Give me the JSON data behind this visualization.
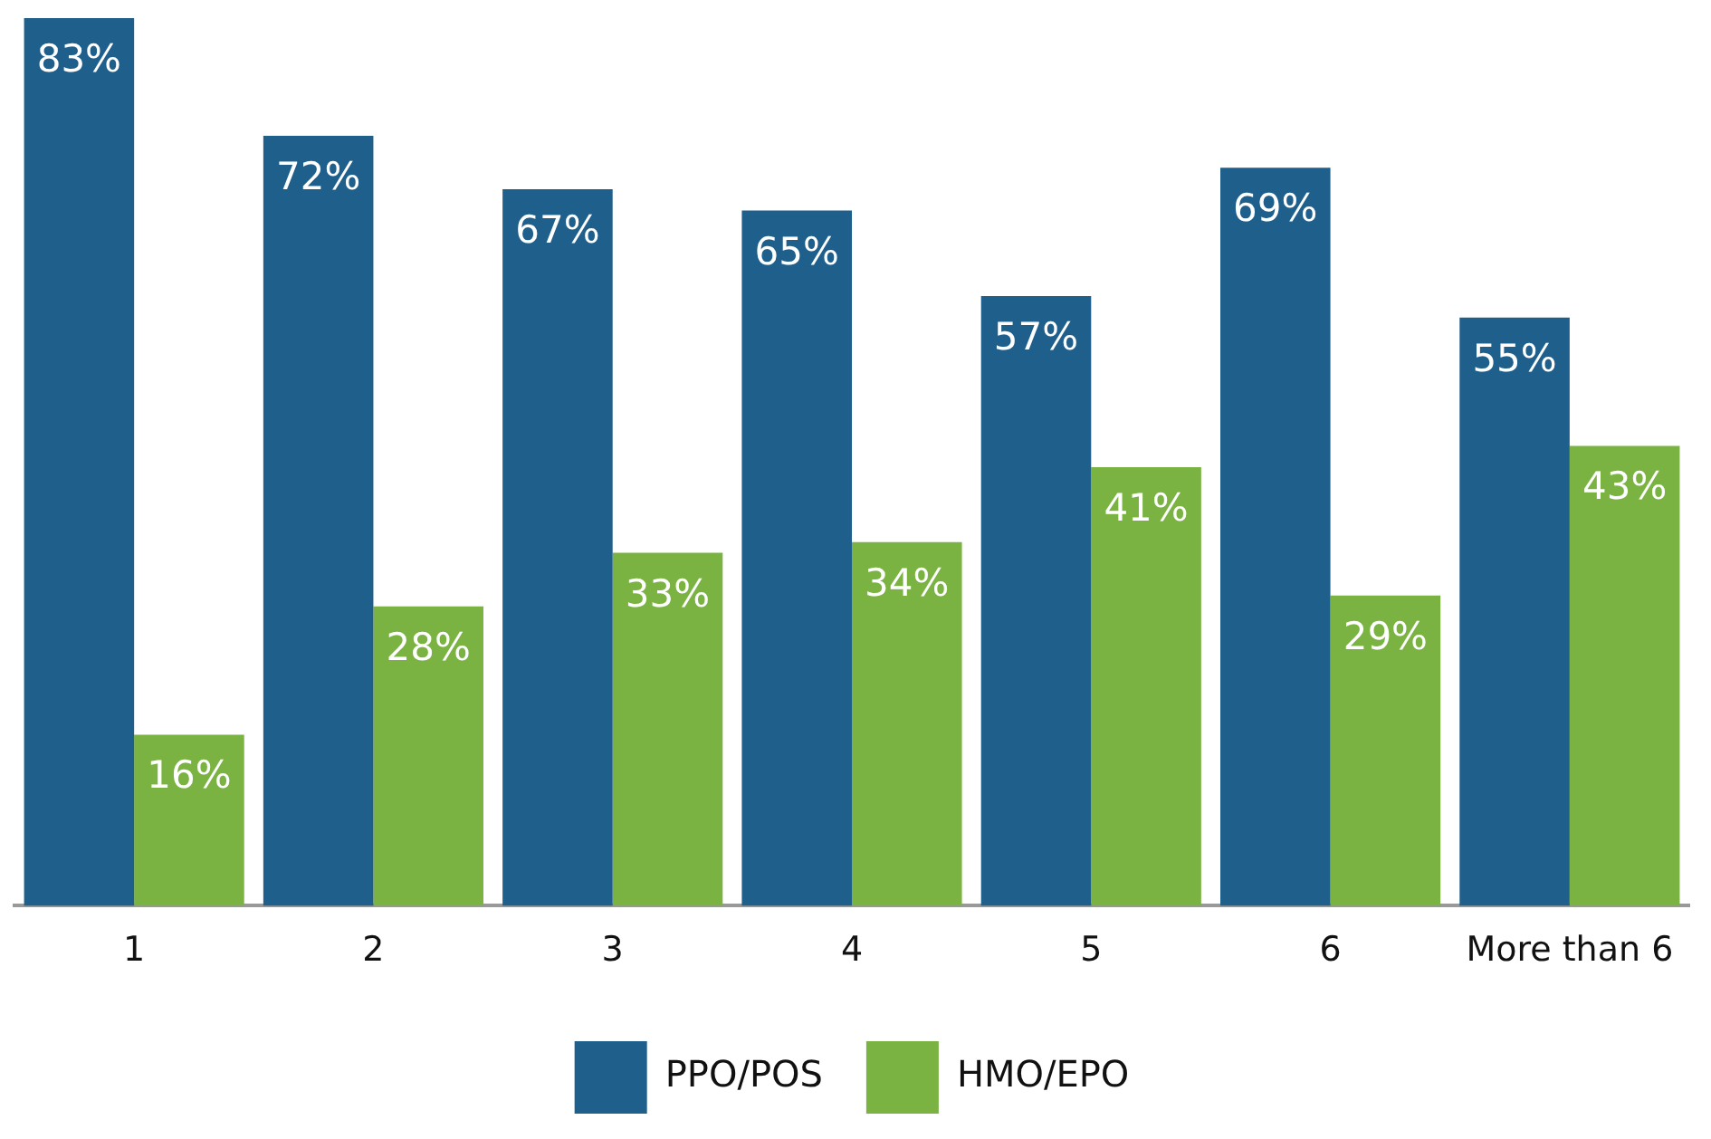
{
  "chart_data": {
    "type": "bar",
    "categories": [
      "1",
      "2",
      "3",
      "4",
      "5",
      "6",
      "More than 6"
    ],
    "series": [
      {
        "name": "PPO/POS",
        "color": "#1f5f8b",
        "values": [
          83,
          72,
          67,
          65,
          57,
          69,
          55
        ],
        "value_labels": [
          "83%",
          "72%",
          "67%",
          "65%",
          "57%",
          "69%",
          "55%"
        ]
      },
      {
        "name": "HMO/EPO",
        "color": "#7ab342",
        "values": [
          16,
          28,
          33,
          34,
          41,
          29,
          43
        ],
        "value_labels": [
          "16%",
          "28%",
          "33%",
          "34%",
          "41%",
          "29%",
          "43%"
        ]
      }
    ],
    "tick_labels": "x",
    "legend": "bottom",
    "grid": false
  }
}
